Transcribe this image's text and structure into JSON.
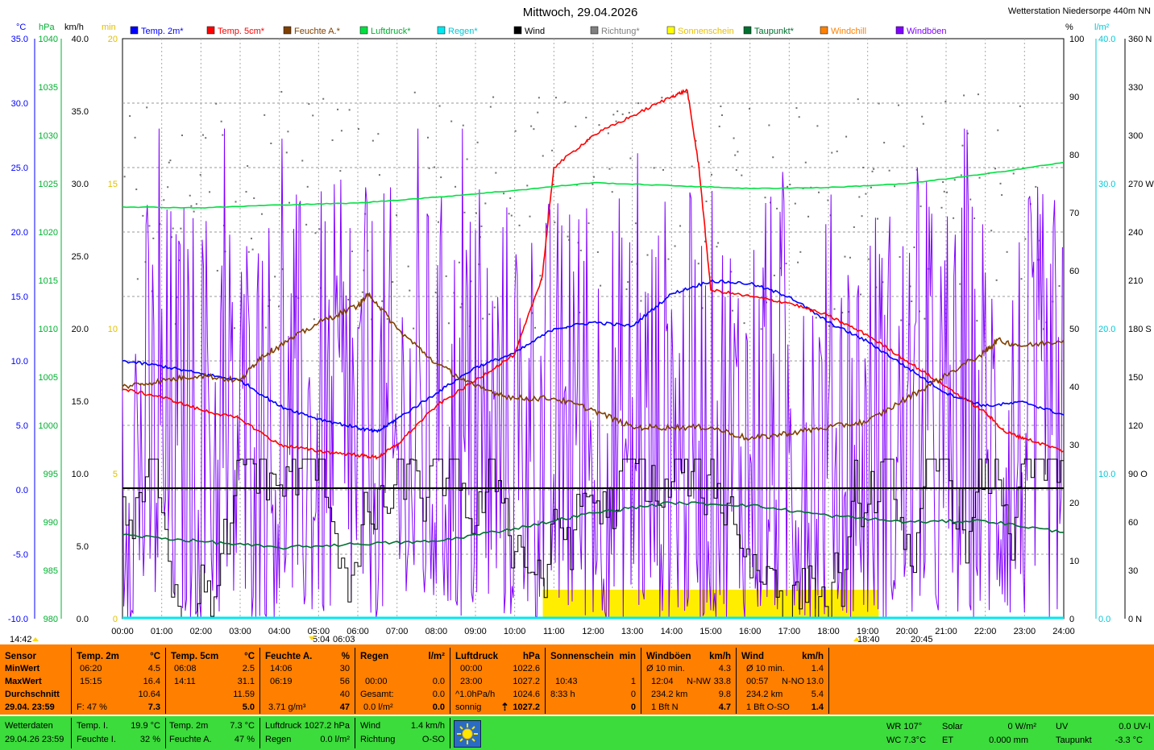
{
  "header": {
    "title": "Mittwoch, 29.04.2026",
    "station": "Wetterstation Niedersorpe 440m NN"
  },
  "units": {
    "celsius": "°C",
    "hpa": "hPa",
    "kmh": "km/h",
    "min": "min",
    "percent": "%",
    "lm2": "l/m²",
    "deg": ""
  },
  "legend": [
    {
      "label": "Temp. 2m*",
      "color": "#0000ff"
    },
    {
      "label": "Temp. 5cm*",
      "color": "#ff0000"
    },
    {
      "label": "Feuchte A.*",
      "color": "#804000"
    },
    {
      "label": "Luftdruck*",
      "color": "#00e040"
    },
    {
      "label": "Regen*",
      "color": "#00e8f0"
    },
    {
      "label": "Wind",
      "color": "#000000"
    },
    {
      "label": "Richtung*",
      "color": "#808080"
    },
    {
      "label": "Sonnenschein",
      "color": "#ffff00"
    },
    {
      "label": "Taupunkt*",
      "color": "#007030"
    },
    {
      "label": "Windchill",
      "color": "#ff8000"
    },
    {
      "label": "Windböen",
      "color": "#8000ff"
    }
  ],
  "chart_data": {
    "type": "line",
    "title": "Mittwoch, 29.04.2026",
    "x_ticks": [
      "00:00",
      "01:00",
      "02:00",
      "03:00",
      "04:00",
      "05:00",
      "06:00",
      "07:00",
      "08:00",
      "09:00",
      "10:00",
      "11:00",
      "12:00",
      "13:00",
      "14:00",
      "15:00",
      "16:00",
      "17:00",
      "18:00",
      "19:00",
      "20:00",
      "21:00",
      "22:00",
      "23:00",
      "24:00"
    ],
    "axes": {
      "temp": {
        "color": "#0000ff",
        "ticks": [
          "35.0",
          "30.0",
          "25.0",
          "20.0",
          "15.0",
          "10.0",
          "5.0",
          "0.0",
          "-5.0",
          "-10.0"
        ],
        "range": [
          -10,
          35
        ]
      },
      "pressure": {
        "color": "#00c000",
        "ticks": [
          "1040",
          "1035",
          "1030",
          "1025",
          "1020",
          "1015",
          "1010",
          "1005",
          "1000",
          "995",
          "990",
          "985",
          "980"
        ],
        "range": [
          980,
          1040
        ]
      },
      "wind": {
        "color": "#000000",
        "ticks": [
          "40.0",
          "35.0",
          "30.0",
          "25.0",
          "20.0",
          "15.0",
          "10.0",
          "5.0",
          "0.0"
        ],
        "range": [
          0,
          40
        ]
      },
      "sun": {
        "color": "#e0c000",
        "ticks": [
          "20",
          "15",
          "10",
          "5",
          "0"
        ],
        "range": [
          0,
          20
        ]
      },
      "humidity": {
        "color": "#000000",
        "ticks": [
          "100",
          "90",
          "80",
          "70",
          "60",
          "50",
          "40",
          "30",
          "20",
          "10",
          "0"
        ],
        "range": [
          0,
          100
        ]
      },
      "rain": {
        "color": "#00c8d8",
        "ticks": [
          "40.0",
          "30.0",
          "20.0",
          "10.0",
          "0.0"
        ],
        "range": [
          0,
          40
        ]
      },
      "direction": {
        "color": "#000000",
        "ticks": [
          "360 N",
          "330",
          "300",
          "270 W",
          "240",
          "210",
          "180 S",
          "150",
          "120",
          "90 O",
          "60",
          "30",
          "0 N"
        ],
        "range": [
          0,
          360
        ]
      }
    },
    "series": [
      {
        "name": "Temp. 2m*",
        "axis": "temp",
        "x": [
          0,
          1,
          2,
          3,
          4,
          5,
          6,
          6.5,
          7,
          8,
          9,
          10,
          11,
          12,
          13,
          14,
          15,
          16,
          17,
          18,
          19,
          20,
          21,
          22,
          23,
          24
        ],
        "y": [
          10.0,
          9.6,
          9.0,
          8.5,
          6.5,
          5.5,
          4.8,
          4.5,
          5.5,
          7.5,
          9.5,
          10.6,
          12.5,
          13.0,
          12.7,
          15.2,
          16.2,
          16.0,
          15.0,
          13.0,
          11.5,
          9.5,
          7.5,
          6.5,
          6.8,
          5.8
        ]
      },
      {
        "name": "Temp. 5cm*",
        "axis": "temp",
        "x": [
          0,
          1,
          2,
          3,
          4,
          5,
          6,
          6.5,
          7,
          8,
          9,
          10,
          10.7,
          11,
          12,
          13,
          14,
          14.4,
          14.7,
          15,
          16,
          17,
          18,
          19,
          20,
          21,
          22,
          22.5,
          23,
          24
        ],
        "y": [
          7.8,
          7.2,
          6.2,
          5.5,
          3.5,
          3.0,
          2.7,
          2.5,
          3.5,
          6.5,
          8.5,
          10.5,
          16.5,
          25.0,
          27.5,
          29.0,
          30.5,
          31.0,
          25.0,
          15.5,
          15.0,
          14.5,
          13.5,
          12.0,
          10.0,
          8.0,
          6.0,
          4.5,
          4.0,
          3.0
        ]
      },
      {
        "name": "Feuchte A.*",
        "axis": "humidity",
        "x": [
          0,
          1,
          2,
          3,
          3.5,
          4,
          5,
          6,
          6.3,
          7,
          8,
          9,
          10,
          11,
          12,
          13,
          14,
          15,
          16,
          17,
          18,
          19,
          20,
          21,
          22,
          22.3,
          23,
          24
        ],
        "y": [
          40,
          41,
          42,
          41,
          45,
          47,
          51,
          54,
          56,
          50,
          44,
          40,
          38,
          38,
          36,
          33,
          33,
          33,
          31,
          32,
          33,
          34,
          38,
          42,
          46,
          48,
          47,
          48
        ]
      },
      {
        "name": "Luftdruck*",
        "axis": "pressure",
        "x": [
          0,
          2,
          4,
          6,
          8,
          10,
          12,
          14,
          16,
          18,
          20,
          22,
          24
        ],
        "y": [
          1022.6,
          1022.5,
          1022.8,
          1023.0,
          1023.6,
          1024.3,
          1025.1,
          1024.8,
          1024.5,
          1024.6,
          1025.0,
          1026.0,
          1027.2
        ]
      },
      {
        "name": "Taupunkt*",
        "axis": "temp",
        "x": [
          0,
          2,
          4,
          6,
          8,
          10,
          12,
          14,
          16,
          18,
          20,
          22,
          24
        ],
        "y": [
          -3.5,
          -4.0,
          -4.5,
          -4.2,
          -4.0,
          -3.0,
          -1.8,
          -1.0,
          -1.2,
          -2.0,
          -2.5,
          -2.4,
          -3.3
        ]
      },
      {
        "name": "Wind",
        "axis": "wind",
        "x": [
          0,
          24
        ],
        "y": [
          9.0,
          9.0
        ]
      }
    ],
    "sunshine_period": {
      "start": "10:43",
      "end": "19:17"
    },
    "markers": {
      "left": "14:42",
      "sunrise_a": "5:04",
      "sunrise_b": "06:03",
      "sunset_a": "18:40",
      "sunset_b": "20:45"
    }
  },
  "stats": {
    "sensor": {
      "title": "Sensor",
      "rows": [
        "MinWert",
        "MaxWert",
        "Durchschnitt"
      ],
      "foot": "29.04. 23:59"
    },
    "temp2m": {
      "title": "Temp. 2m",
      "unit": "°C",
      "min_t": "06:20",
      "min_v": "4.5",
      "max_t": "15:15",
      "max_v": "16.4",
      "avg": "10.64",
      "foot_l": "F: 47 %",
      "foot_r": "7.3"
    },
    "temp5cm": {
      "title": "Temp. 5cm",
      "unit": "°C",
      "min_t": "06:08",
      "min_v": "2.5",
      "max_t": "14:11",
      "max_v": "31.1",
      "avg": "11.59",
      "foot_r": "5.0"
    },
    "feuchte": {
      "title": "Feuchte A.",
      "unit": "%",
      "min_t": "14:06",
      "min_v": "30",
      "max_t": "06:19",
      "max_v": "56",
      "avg": "40",
      "foot_l": "3.71 g/m³",
      "foot_r": "47"
    },
    "regen": {
      "title": "Regen",
      "unit": "l/m²",
      "r2_t": "00:00",
      "r2_v": "0.0",
      "r3_t": "Gesamt:",
      "r3_v": "0.0",
      "foot_l": "0.0 l/m²",
      "foot_r": "0.0",
      "r1_v": ""
    },
    "luftdruck": {
      "title": "Luftdruck",
      "unit": "hPa",
      "min_t": "00:00",
      "min_v": "1022.6",
      "max_t": "23:00",
      "max_v": "1027.2",
      "avg_t": "^1.0hPa/h",
      "avg": "1024.6",
      "foot_l": "sonnig",
      "foot_r": "1027.2",
      "arrow": "⇡"
    },
    "sonne": {
      "title": "Sonnenschein",
      "unit": "min",
      "r2_t": "10:43",
      "r2_v": "1",
      "r3_t": "8:33 h",
      "r3_v": "0",
      "foot_r": "0"
    },
    "boeen": {
      "title": "Windböen",
      "unit": "km/h",
      "r1_t": "Ø 10 min.",
      "r1_v": "4.3",
      "r2_t": "12:04",
      "r2_m": "N-NW",
      "r2_v": "33.8",
      "r3_t": "234.2 km",
      "r3_v": "9.8",
      "foot_l": "1 Bft N",
      "foot_r": "4.7"
    },
    "wind": {
      "title": "Wind",
      "unit": "km/h",
      "r1_t": "Ø 10 min.",
      "r1_v": "1.4",
      "r2_t": "00:57",
      "r2_m": "N-NO",
      "r2_v": "13.0",
      "r3_t": "234.2 km",
      "r3_v": "5.4",
      "foot_l": "1 Bft O-SO",
      "foot_r": "1.4"
    }
  },
  "current": {
    "label": "Wetterdaten",
    "time": "29.04.26 23:59",
    "temp_i_l": "Temp. I.",
    "temp_i_v": "19.9 °C",
    "feuchte_i_l": "Feuchte I.",
    "feuchte_i_v": "32 %",
    "temp_2m_l": "Temp. 2m",
    "temp_2m_v": "7.3 °C",
    "feuchte_a_l": "Feuchte A.",
    "feuchte_a_v": "47 %",
    "luftdruck_l": "Luftdruck",
    "luftdruck_v": "1027.2 hPa",
    "regen_l": "Regen",
    "regen_v": "0.0 l/m²",
    "wind_l": "Wind",
    "wind_v": "1.4 km/h",
    "richtung_l": "Richtung",
    "richtung_v": "O-SO",
    "wr": "WR 107°",
    "wc": "WC 7.3°C",
    "solar_l": "Solar",
    "solar_v": "0 W/m²",
    "et_l": "ET",
    "et_v": "0.000 mm",
    "uv_l": "UV",
    "uv_v": "0.0 UV-I",
    "taupunkt_l": "Taupunkt",
    "taupunkt_v": "-3.3 °C"
  }
}
